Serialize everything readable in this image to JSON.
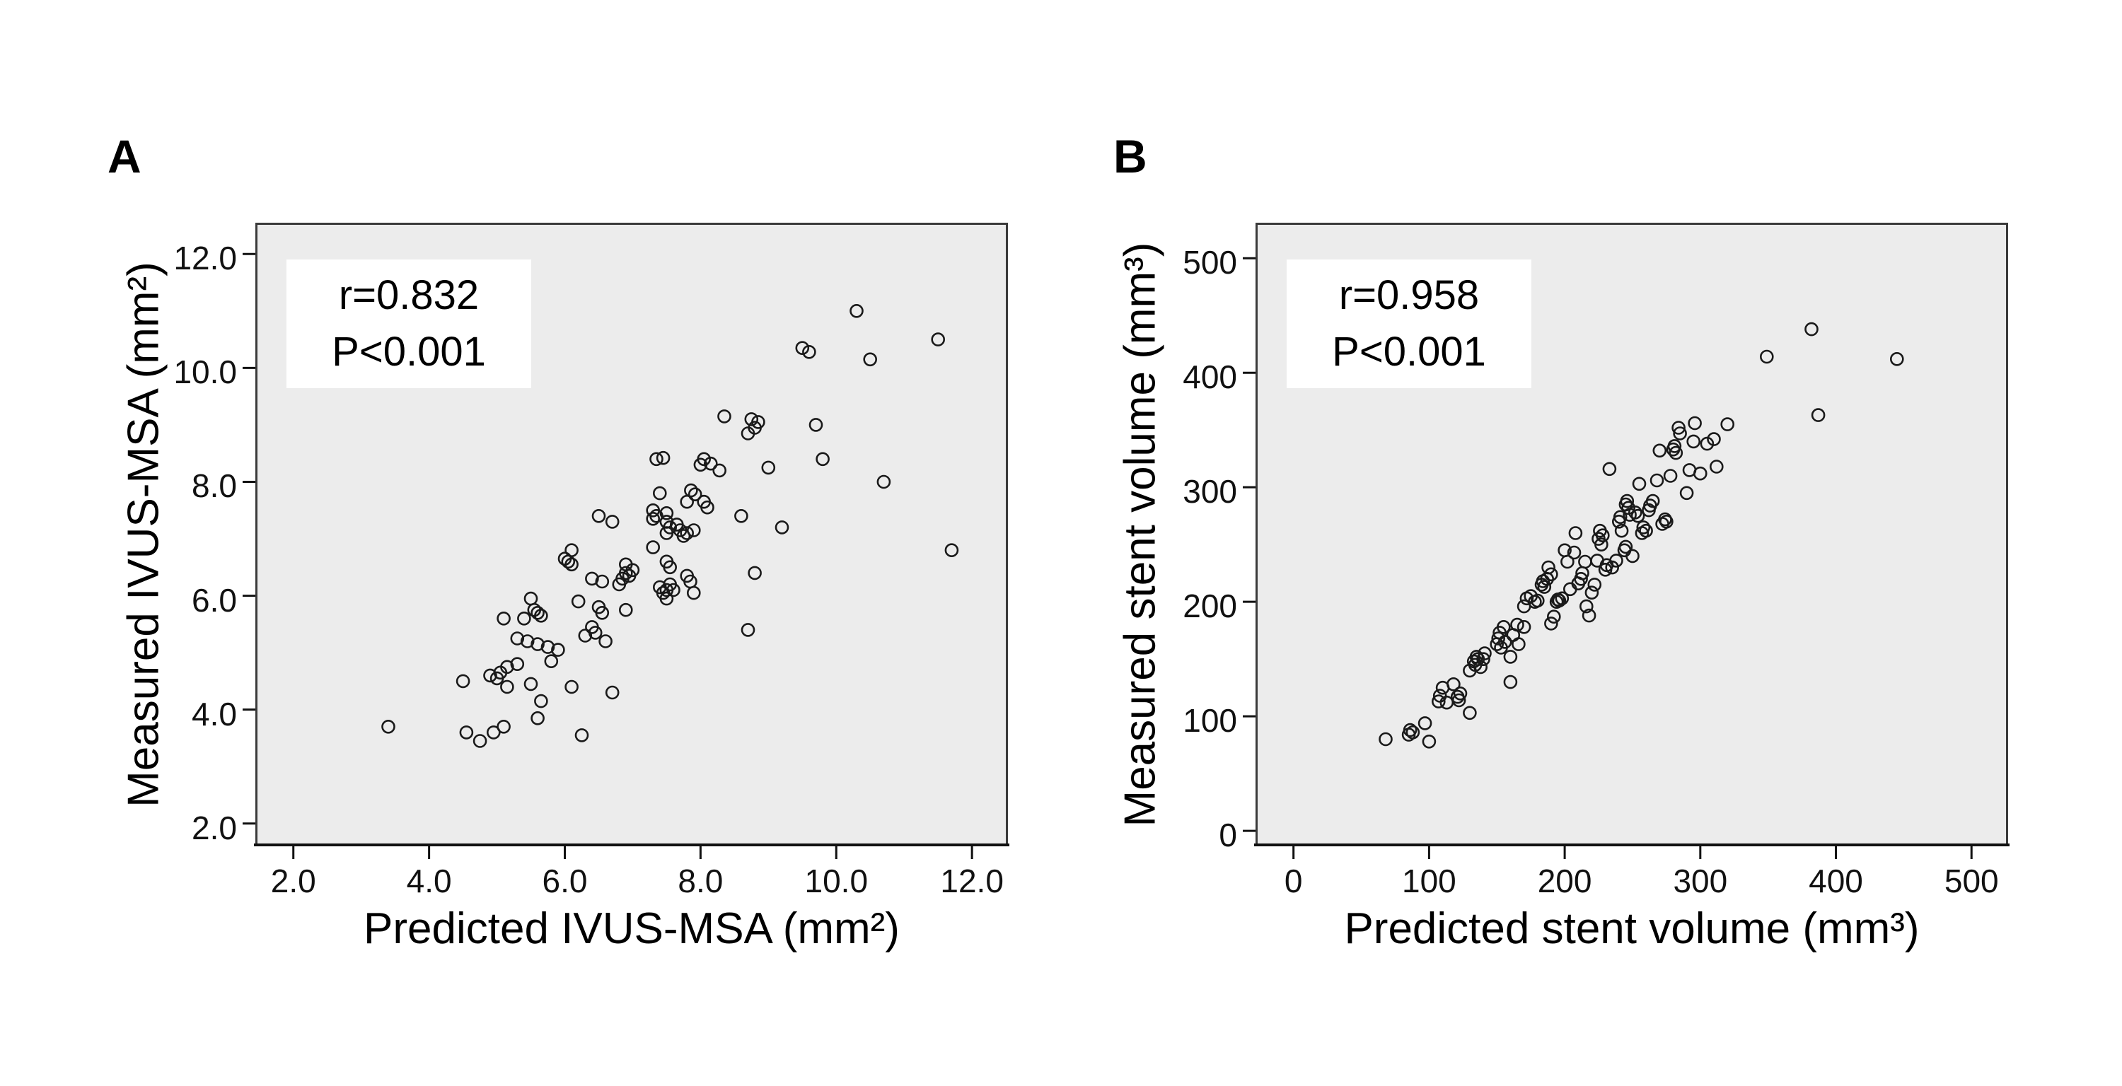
{
  "figure": {
    "background": "#ffffff",
    "plot_bg": "#ececec",
    "frame_color": "#3a3a3a",
    "marker_color": "#1a1a1a",
    "text_color": "#000000"
  },
  "chart_data": [
    {
      "type": "scatter",
      "panel_label": "A",
      "title": "",
      "xlabel": "Predicted IVUS-MSA (mm²)",
      "ylabel": "Measured IVUS-MSA (mm²)",
      "annotation": {
        "line1": "r=0.832",
        "line2": "P<0.001"
      },
      "xlim": [
        1.44,
        12.53
      ],
      "ylim": [
        1.6,
        12.55
      ],
      "grid": false,
      "legend": "none",
      "x_tick_values": [
        2,
        4,
        6,
        8,
        10,
        12
      ],
      "x_tick_labels": [
        "2.0",
        "4.0",
        "6.0",
        "8.0",
        "10.0",
        "12.0"
      ],
      "y_tick_values": [
        2,
        4,
        6,
        8,
        10,
        12
      ],
      "y_tick_labels": [
        "2.0",
        "4.0",
        "6.0",
        "8.0",
        "10.0",
        "12.0"
      ],
      "points": [
        [
          3.4,
          3.7
        ],
        [
          4.55,
          3.6
        ],
        [
          4.75,
          3.45
        ],
        [
          4.95,
          3.6
        ],
        [
          5.1,
          3.7
        ],
        [
          6.25,
          3.55
        ],
        [
          5.6,
          3.85
        ],
        [
          5.65,
          4.15
        ],
        [
          4.5,
          4.5
        ],
        [
          5.15,
          4.4
        ],
        [
          5.5,
          4.45
        ],
        [
          6.1,
          4.4
        ],
        [
          6.7,
          4.3
        ],
        [
          4.9,
          4.6
        ],
        [
          5.0,
          4.55
        ],
        [
          5.05,
          4.65
        ],
        [
          5.15,
          4.75
        ],
        [
          5.3,
          4.8
        ],
        [
          5.8,
          4.85
        ],
        [
          5.3,
          5.25
        ],
        [
          5.45,
          5.2
        ],
        [
          5.6,
          5.15
        ],
        [
          5.75,
          5.1
        ],
        [
          5.9,
          5.05
        ],
        [
          6.6,
          5.2
        ],
        [
          6.3,
          5.3
        ],
        [
          6.4,
          5.45
        ],
        [
          6.45,
          5.35
        ],
        [
          5.4,
          5.6
        ],
        [
          5.1,
          5.6
        ],
        [
          5.55,
          5.75
        ],
        [
          5.6,
          5.7
        ],
        [
          5.65,
          5.65
        ],
        [
          6.5,
          5.8
        ],
        [
          6.55,
          5.7
        ],
        [
          6.9,
          5.75
        ],
        [
          5.5,
          5.95
        ],
        [
          6.2,
          5.9
        ],
        [
          8.7,
          5.4
        ],
        [
          6.0,
          6.65
        ],
        [
          6.05,
          6.6
        ],
        [
          6.1,
          6.55
        ],
        [
          6.1,
          6.8
        ],
        [
          6.4,
          6.3
        ],
        [
          6.55,
          6.25
        ],
        [
          6.8,
          6.2
        ],
        [
          6.85,
          6.3
        ],
        [
          6.9,
          6.4
        ],
        [
          6.95,
          6.35
        ],
        [
          7.0,
          6.45
        ],
        [
          6.9,
          6.55
        ],
        [
          7.3,
          6.85
        ],
        [
          7.4,
          6.15
        ],
        [
          7.45,
          6.05
        ],
        [
          7.5,
          6.1
        ],
        [
          7.55,
          6.2
        ],
        [
          7.5,
          5.95
        ],
        [
          7.6,
          6.1
        ],
        [
          7.8,
          6.35
        ],
        [
          7.85,
          6.25
        ],
        [
          7.9,
          6.05
        ],
        [
          8.8,
          6.4
        ],
        [
          11.7,
          6.8
        ],
        [
          7.5,
          6.6
        ],
        [
          7.55,
          6.5
        ],
        [
          6.5,
          7.4
        ],
        [
          6.7,
          7.3
        ],
        [
          7.3,
          7.5
        ],
        [
          7.35,
          7.4
        ],
        [
          7.3,
          7.35
        ],
        [
          7.5,
          7.45
        ],
        [
          7.5,
          7.3
        ],
        [
          7.55,
          7.2
        ],
        [
          7.5,
          7.1
        ],
        [
          7.65,
          7.25
        ],
        [
          7.7,
          7.15
        ],
        [
          7.75,
          7.05
        ],
        [
          7.8,
          7.1
        ],
        [
          7.9,
          7.15
        ],
        [
          7.4,
          7.8
        ],
        [
          7.8,
          7.65
        ],
        [
          8.6,
          7.4
        ],
        [
          9.2,
          7.2
        ],
        [
          7.86,
          7.85
        ],
        [
          7.92,
          7.78
        ],
        [
          8.05,
          7.65
        ],
        [
          8.1,
          7.55
        ],
        [
          8.0,
          8.3
        ],
        [
          8.05,
          8.4
        ],
        [
          8.15,
          8.32
        ],
        [
          8.28,
          8.2
        ],
        [
          7.35,
          8.4
        ],
        [
          7.45,
          8.42
        ],
        [
          9.0,
          8.25
        ],
        [
          9.8,
          8.4
        ],
        [
          10.7,
          8.0
        ],
        [
          8.35,
          9.15
        ],
        [
          8.75,
          9.1
        ],
        [
          8.85,
          9.05
        ],
        [
          8.8,
          8.95
        ],
        [
          8.7,
          8.85
        ],
        [
          9.7,
          9.0
        ],
        [
          10.3,
          11.0
        ],
        [
          11.5,
          10.5
        ],
        [
          9.5,
          10.35
        ],
        [
          9.6,
          10.28
        ],
        [
          10.5,
          10.15
        ]
      ]
    },
    {
      "type": "scatter",
      "panel_label": "B",
      "title": "",
      "xlabel": "Predicted stent volume (mm³)",
      "ylabel": "Measured stent volume (mm³)",
      "annotation": {
        "line1": "r=0.958",
        "line2": "P<0.001"
      },
      "xlim": [
        -28,
        527
      ],
      "ylim": [
        -13.5,
        531
      ],
      "grid": false,
      "legend": "none",
      "x_tick_values": [
        0,
        100,
        200,
        300,
        400,
        500
      ],
      "x_tick_labels": [
        "0",
        "100",
        "200",
        "300",
        "400",
        "500"
      ],
      "y_tick_values": [
        0,
        100,
        200,
        300,
        400,
        500
      ],
      "y_tick_labels": [
        "0",
        "100",
        "200",
        "300",
        "400",
        "500"
      ],
      "points": [
        [
          68,
          80
        ],
        [
          85,
          84
        ],
        [
          86,
          88
        ],
        [
          88,
          86
        ],
        [
          97,
          94
        ],
        [
          100,
          78
        ],
        [
          107,
          113
        ],
        [
          108,
          118
        ],
        [
          110,
          125
        ],
        [
          113,
          112
        ],
        [
          118,
          128
        ],
        [
          121,
          117
        ],
        [
          122,
          114
        ],
        [
          123,
          120
        ],
        [
          130,
          103
        ],
        [
          130,
          140
        ],
        [
          133,
          148
        ],
        [
          134,
          145
        ],
        [
          135,
          152
        ],
        [
          136,
          150
        ],
        [
          138,
          143
        ],
        [
          140,
          150
        ],
        [
          141,
          155
        ],
        [
          150,
          163
        ],
        [
          151,
          168
        ],
        [
          152,
          173
        ],
        [
          153,
          160
        ],
        [
          155,
          178
        ],
        [
          156,
          165
        ],
        [
          160,
          130
        ],
        [
          160,
          152
        ],
        [
          162,
          171
        ],
        [
          165,
          180
        ],
        [
          166,
          163
        ],
        [
          170,
          178
        ],
        [
          170,
          196
        ],
        [
          172,
          203
        ],
        [
          175,
          205
        ],
        [
          178,
          200
        ],
        [
          180,
          201
        ],
        [
          183,
          215
        ],
        [
          184,
          218
        ],
        [
          185,
          213
        ],
        [
          187,
          220
        ],
        [
          188,
          230
        ],
        [
          190,
          224
        ],
        [
          190,
          181
        ],
        [
          192,
          187
        ],
        [
          194,
          200
        ],
        [
          195,
          202
        ],
        [
          196,
          201
        ],
        [
          198,
          203
        ],
        [
          200,
          245
        ],
        [
          202,
          235
        ],
        [
          204,
          211
        ],
        [
          207,
          243
        ],
        [
          208,
          260
        ],
        [
          210,
          216
        ],
        [
          212,
          220
        ],
        [
          213,
          225
        ],
        [
          215,
          235
        ],
        [
          216,
          196
        ],
        [
          218,
          188
        ],
        [
          220,
          208
        ],
        [
          222,
          215
        ],
        [
          224,
          236
        ],
        [
          225,
          255
        ],
        [
          226,
          262
        ],
        [
          227,
          250
        ],
        [
          228,
          258
        ],
        [
          230,
          228
        ],
        [
          231,
          232
        ],
        [
          233,
          316
        ],
        [
          235,
          230
        ],
        [
          238,
          236
        ],
        [
          240,
          270
        ],
        [
          241,
          274
        ],
        [
          242,
          262
        ],
        [
          244,
          245
        ],
        [
          245,
          248
        ],
        [
          245,
          285
        ],
        [
          246,
          288
        ],
        [
          247,
          282
        ],
        [
          248,
          276
        ],
        [
          250,
          240
        ],
        [
          252,
          278
        ],
        [
          254,
          275
        ],
        [
          255,
          303
        ],
        [
          257,
          260
        ],
        [
          258,
          265
        ],
        [
          260,
          262
        ],
        [
          262,
          280
        ],
        [
          263,
          284
        ],
        [
          265,
          288
        ],
        [
          268,
          306
        ],
        [
          270,
          332
        ],
        [
          272,
          268
        ],
        [
          274,
          272
        ],
        [
          275,
          270
        ],
        [
          278,
          310
        ],
        [
          280,
          333
        ],
        [
          281,
          336
        ],
        [
          282,
          330
        ],
        [
          284,
          352
        ],
        [
          285,
          347
        ],
        [
          290,
          295
        ],
        [
          292,
          315
        ],
        [
          295,
          340
        ],
        [
          296,
          356
        ],
        [
          300,
          312
        ],
        [
          305,
          338
        ],
        [
          310,
          342
        ],
        [
          312,
          318
        ],
        [
          320,
          355
        ],
        [
          349,
          414
        ],
        [
          382,
          438
        ],
        [
          387,
          363
        ],
        [
          445,
          412
        ]
      ]
    }
  ]
}
